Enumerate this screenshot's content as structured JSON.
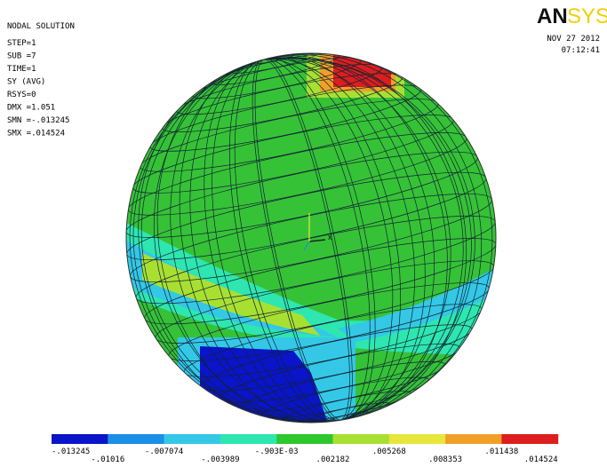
{
  "header": {
    "title": "NODAL SOLUTION",
    "lines": [
      "STEP=1",
      "SUB =7",
      "TIME=1",
      "SY        (AVG)",
      "RSYS=0",
      "DMX =1.051",
      "SMN =-.013245",
      "SMX =.014524"
    ]
  },
  "logo": {
    "bold": "AN",
    "light": "SYS"
  },
  "date": "NOV 27 2012",
  "time": "07:12:41",
  "triad": {
    "x": "X"
  },
  "legend": {
    "colors": [
      "#0a14c8",
      "#1c8fe6",
      "#34c8e6",
      "#2ee6b0",
      "#2ec82e",
      "#a8e032",
      "#e6e63c",
      "#f0a028",
      "#dc1e1e"
    ],
    "labels": [
      "-.013245",
      "-.01016",
      "-.007074",
      "-.003989",
      "-.903E-03",
      ".002182",
      ".005268",
      ".008353",
      ".011438",
      ".014524"
    ]
  }
}
